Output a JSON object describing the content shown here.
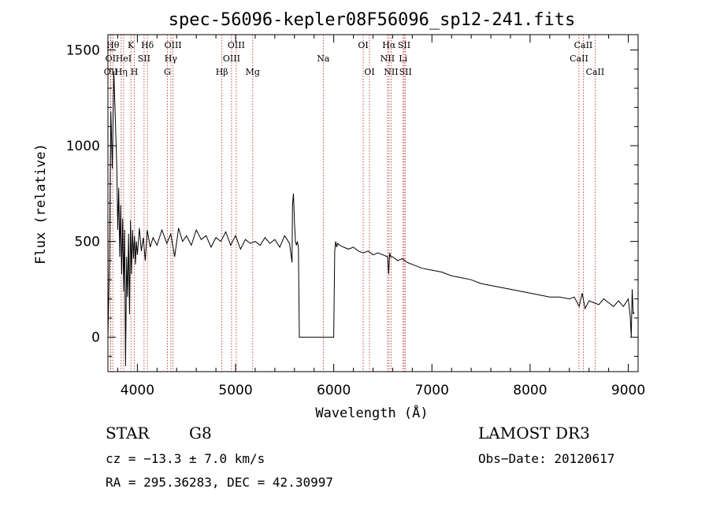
{
  "chart_data": {
    "type": "line",
    "title": "spec-56096-kepler08F56096_sp12-241.fits",
    "xlabel": "Wavelength (Å)",
    "ylabel": "Flux (relative)",
    "xlim": [
      3700,
      9100
    ],
    "ylim": [
      -180,
      1580
    ],
    "xticks": [
      4000,
      5000,
      6000,
      7000,
      8000,
      9000
    ],
    "xtick_labels": [
      "4000",
      "5000",
      "6000",
      "7000",
      "8000",
      "9000"
    ],
    "yticks": [
      0,
      500,
      1000,
      1500
    ],
    "ytick_labels": [
      "0",
      "500",
      "1000",
      "1500"
    ],
    "series": [
      {
        "name": "flux",
        "x": [
          3700,
          3715,
          3730,
          3745,
          3760,
          3775,
          3790,
          3800,
          3810,
          3820,
          3830,
          3840,
          3850,
          3860,
          3870,
          3880,
          3890,
          3900,
          3910,
          3920,
          3930,
          3940,
          3950,
          3960,
          3970,
          3980,
          3990,
          4000,
          4020,
          4040,
          4060,
          4080,
          4100,
          4130,
          4160,
          4200,
          4250,
          4300,
          4340,
          4380,
          4420,
          4460,
          4500,
          4550,
          4600,
          4650,
          4700,
          4750,
          4800,
          4850,
          4900,
          4950,
          5000,
          5050,
          5100,
          5150,
          5200,
          5250,
          5300,
          5350,
          5400,
          5450,
          5500,
          5550,
          5575,
          5580,
          5590,
          5600,
          5610,
          5620,
          5630,
          5640,
          5650,
          6000,
          6010,
          6020,
          6030,
          6040,
          6060,
          6100,
          6150,
          6200,
          6250,
          6300,
          6350,
          6400,
          6450,
          6500,
          6550,
          6560,
          6570,
          6580,
          6600,
          6650,
          6700,
          6750,
          6800,
          6900,
          7000,
          7100,
          7200,
          7300,
          7400,
          7500,
          7600,
          7700,
          7800,
          7900,
          8000,
          8100,
          8200,
          8300,
          8400,
          8450,
          8500,
          8530,
          8560,
          8600,
          8650,
          8700,
          8750,
          8800,
          8850,
          8900,
          8950,
          9000,
          9020,
          9030,
          9040,
          9050,
          9060
        ],
        "y": [
          0,
          380,
          1180,
          880,
          1390,
          1150,
          900,
          560,
          780,
          420,
          690,
          330,
          620,
          240,
          560,
          -150,
          420,
          210,
          540,
          120,
          610,
          330,
          560,
          410,
          530,
          380,
          500,
          430,
          570,
          450,
          520,
          400,
          560,
          470,
          520,
          480,
          560,
          490,
          540,
          420,
          570,
          500,
          530,
          480,
          560,
          510,
          530,
          470,
          520,
          500,
          550,
          480,
          530,
          460,
          510,
          490,
          500,
          480,
          520,
          490,
          510,
          470,
          530,
          490,
          390,
          690,
          750,
          600,
          500,
          480,
          500,
          470,
          0,
          0,
          450,
          500,
          470,
          490,
          480,
          470,
          460,
          470,
          450,
          440,
          450,
          430,
          440,
          430,
          420,
          330,
          440,
          420,
          420,
          400,
          410,
          390,
          380,
          360,
          350,
          340,
          320,
          310,
          300,
          280,
          270,
          260,
          250,
          240,
          230,
          220,
          210,
          210,
          200,
          210,
          160,
          230,
          150,
          190,
          180,
          170,
          200,
          180,
          160,
          190,
          160,
          200,
          110,
          0,
          250,
          120,
          130
        ]
      }
    ],
    "spectral_lines": [
      {
        "label": "OI",
        "x": 3727,
        "row": 1
      },
      {
        "label": "OII",
        "x": 3729,
        "row": 2
      },
      {
        "label": "Hθ",
        "x": 3750,
        "row": 0
      },
      {
        "label": "Hη",
        "x": 3835,
        "row": 2
      },
      {
        "label": "HeI",
        "x": 3860,
        "row": 1
      },
      {
        "label": "K",
        "x": 3934,
        "row": 0
      },
      {
        "label": "H",
        "x": 3969,
        "row": 2
      },
      {
        "label": "SII",
        "x": 4068,
        "row": 1
      },
      {
        "label": "Hδ",
        "x": 4102,
        "row": 0
      },
      {
        "label": "OIII",
        "x": 4363,
        "row": 0
      },
      {
        "label": "Hγ",
        "x": 4341,
        "row": 1
      },
      {
        "label": "G",
        "x": 4305,
        "row": 2
      },
      {
        "label": "Hβ",
        "x": 4861,
        "row": 2
      },
      {
        "label": "OIII",
        "x": 5007,
        "row": 0
      },
      {
        "label": "OIII",
        "x": 4959,
        "row": 1
      },
      {
        "label": "Mg",
        "x": 5175,
        "row": 2
      },
      {
        "label": "Na",
        "x": 5893,
        "row": 1
      },
      {
        "label": "OI",
        "x": 6300,
        "row": 0
      },
      {
        "label": "OI",
        "x": 6364,
        "row": 2
      },
      {
        "label": "Hα",
        "x": 6563,
        "row": 0
      },
      {
        "label": "NII",
        "x": 6548,
        "row": 1
      },
      {
        "label": "NII",
        "x": 6584,
        "row": 2
      },
      {
        "label": "SII",
        "x": 6717,
        "row": 0
      },
      {
        "label": "Li",
        "x": 6707,
        "row": 1
      },
      {
        "label": "SII",
        "x": 6731,
        "row": 2
      },
      {
        "label": "CaII",
        "x": 8542,
        "row": 0
      },
      {
        "label": "CaII",
        "x": 8498,
        "row": 1
      },
      {
        "label": "CaII",
        "x": 8662,
        "row": 2
      }
    ]
  },
  "info": {
    "object_class": "STAR",
    "subclass": "G8",
    "survey": "LAMOST DR3",
    "cz": "cz = −13.3 ± 7.0 km/s",
    "obs_date": "Obs−Date: 20120617",
    "coords": "RA = 295.36283, DEC =  42.30997"
  }
}
